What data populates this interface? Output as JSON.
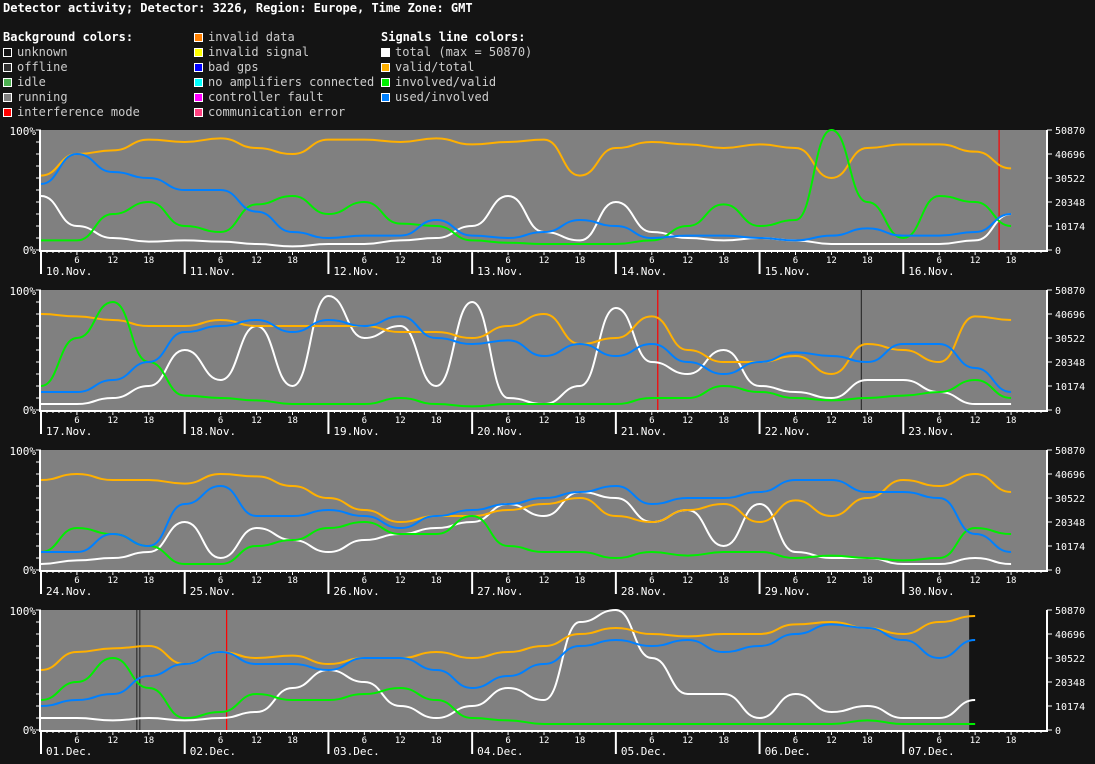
{
  "title": "Detector activity; Detector: 3226, Region: Europe, Time Zone: GMT",
  "legend": {
    "background_heading": "Background colors:",
    "background": [
      {
        "label": "unknown",
        "color": "#141414"
      },
      {
        "label": "offline",
        "color": "#303030"
      },
      {
        "label": "idle",
        "color": "#4caf50"
      },
      {
        "label": "running",
        "color": "#808080"
      },
      {
        "label": "interference mode",
        "color": "#ff0000"
      }
    ],
    "background2": [
      {
        "label": "invalid data",
        "color": "#ff8000"
      },
      {
        "label": "invalid signal",
        "color": "#ffff00"
      },
      {
        "label": "bad gps",
        "color": "#0000ff"
      },
      {
        "label": "no amplifiers connected",
        "color": "#00ffff"
      },
      {
        "label": "controller fault",
        "color": "#ff00ff"
      },
      {
        "label": "communication error",
        "color": "#ff4080"
      }
    ],
    "signals_heading": "Signals line colors:",
    "signals": [
      {
        "label": "total (max = 50870)",
        "color": "#ffffff"
      },
      {
        "label": "valid/total",
        "color": "#ffb000"
      },
      {
        "label": "involved/valid",
        "color": "#00ee00"
      },
      {
        "label": "used/involved",
        "color": "#0080ff"
      }
    ]
  },
  "chart_data": [
    {
      "type": "line",
      "days": [
        "10.Nov.",
        "11.Nov.",
        "12.Nov.",
        "13.Nov.",
        "14.Nov.",
        "15.Nov.",
        "16.Nov."
      ],
      "x_ticks": [
        "6",
        "12",
        "18"
      ],
      "sample_hours": [
        0,
        6,
        12,
        18
      ],
      "y_left_ticks": [
        "100%",
        "0%"
      ],
      "y_right_ticks": [
        "50870",
        "40696",
        "30522",
        "20348",
        "10174",
        "0"
      ],
      "series": [
        {
          "name": "total (max = 50870)",
          "color": "#ffffff",
          "values": [
            45,
            20,
            10,
            7,
            8,
            7,
            5,
            3,
            5,
            5,
            8,
            10,
            20,
            45,
            15,
            8,
            40,
            15,
            10,
            8,
            10,
            8,
            5,
            5,
            5,
            5,
            8,
            30
          ]
        },
        {
          "name": "valid/total",
          "color": "#ffb000",
          "values": [
            62,
            80,
            83,
            92,
            90,
            93,
            85,
            80,
            92,
            92,
            90,
            93,
            88,
            90,
            92,
            62,
            85,
            90,
            88,
            85,
            88,
            85,
            60,
            85,
            88,
            88,
            82,
            68
          ]
        },
        {
          "name": "involved/valid",
          "color": "#00ee00",
          "values": [
            8,
            8,
            30,
            40,
            20,
            15,
            38,
            45,
            30,
            40,
            22,
            20,
            8,
            6,
            5,
            5,
            5,
            8,
            20,
            38,
            20,
            25,
            100,
            40,
            10,
            45,
            40,
            20
          ]
        },
        {
          "name": "used/involved",
          "color": "#0080ff",
          "values": [
            55,
            80,
            65,
            60,
            50,
            50,
            32,
            15,
            10,
            12,
            12,
            25,
            12,
            10,
            15,
            25,
            20,
            10,
            12,
            12,
            10,
            8,
            12,
            18,
            12,
            12,
            15,
            30
          ]
        }
      ],
      "events": [
        {
          "state": "interference mode",
          "day": 6,
          "hour": 16
        }
      ],
      "running_until": null
    },
    {
      "type": "line",
      "days": [
        "17.Nov.",
        "18.Nov.",
        "19.Nov.",
        "20.Nov.",
        "21.Nov.",
        "22.Nov.",
        "23.Nov."
      ],
      "x_ticks": [
        "6",
        "12",
        "18"
      ],
      "sample_hours": [
        0,
        6,
        12,
        18
      ],
      "y_left_ticks": [
        "100%",
        "0%"
      ],
      "y_right_ticks": [
        "50870",
        "40696",
        "30522",
        "20348",
        "10174",
        "0"
      ],
      "series": [
        {
          "name": "total (max = 50870)",
          "color": "#ffffff",
          "values": [
            5,
            5,
            10,
            20,
            50,
            25,
            70,
            20,
            95,
            60,
            70,
            20,
            90,
            10,
            5,
            20,
            85,
            40,
            30,
            50,
            20,
            15,
            10,
            25,
            25,
            15,
            5,
            5
          ]
        },
        {
          "name": "valid/total",
          "color": "#ffb000",
          "values": [
            80,
            78,
            75,
            70,
            70,
            75,
            70,
            70,
            70,
            70,
            65,
            65,
            60,
            70,
            80,
            55,
            60,
            78,
            50,
            40,
            40,
            45,
            30,
            55,
            50,
            40,
            78,
            75
          ]
        },
        {
          "name": "involved/valid",
          "color": "#00ee00",
          "values": [
            20,
            60,
            90,
            40,
            12,
            10,
            8,
            5,
            5,
            5,
            10,
            5,
            3,
            5,
            5,
            5,
            5,
            10,
            10,
            20,
            15,
            10,
            8,
            10,
            12,
            15,
            25,
            10
          ]
        },
        {
          "name": "used/involved",
          "color": "#0080ff",
          "values": [
            15,
            15,
            25,
            40,
            65,
            70,
            75,
            65,
            75,
            70,
            78,
            60,
            55,
            58,
            45,
            55,
            45,
            55,
            40,
            30,
            40,
            48,
            45,
            40,
            55,
            55,
            35,
            15
          ]
        }
      ],
      "events": [
        {
          "state": "interference mode",
          "day": 4,
          "hour": 7
        },
        {
          "state": "offline",
          "day": 5,
          "hour": 17
        }
      ],
      "running_until": null
    },
    {
      "type": "line",
      "days": [
        "24.Nov.",
        "25.Nov.",
        "26.Nov.",
        "27.Nov.",
        "28.Nov.",
        "29.Nov.",
        "30.Nov."
      ],
      "x_ticks": [
        "6",
        "12",
        "18"
      ],
      "sample_hours": [
        0,
        6,
        12,
        18
      ],
      "y_left_ticks": [
        "100%",
        "0%"
      ],
      "y_right_ticks": [
        "50870",
        "40696",
        "30522",
        "20348",
        "10174",
        "0"
      ],
      "series": [
        {
          "name": "total (max = 50870)",
          "color": "#ffffff",
          "values": [
            5,
            8,
            10,
            15,
            40,
            10,
            35,
            25,
            15,
            25,
            30,
            35,
            40,
            55,
            45,
            65,
            60,
            40,
            50,
            20,
            55,
            15,
            10,
            10,
            5,
            5,
            10,
            5
          ]
        },
        {
          "name": "valid/total",
          "color": "#ffb000",
          "values": [
            75,
            80,
            75,
            75,
            72,
            80,
            78,
            70,
            60,
            50,
            40,
            45,
            45,
            50,
            55,
            60,
            45,
            40,
            50,
            55,
            40,
            58,
            45,
            60,
            75,
            70,
            80,
            65
          ]
        },
        {
          "name": "involved/valid",
          "color": "#00ee00",
          "values": [
            15,
            35,
            30,
            20,
            5,
            5,
            20,
            25,
            35,
            40,
            30,
            30,
            45,
            20,
            15,
            15,
            10,
            15,
            12,
            15,
            15,
            10,
            12,
            10,
            8,
            10,
            35,
            30
          ]
        },
        {
          "name": "used/involved",
          "color": "#0080ff",
          "values": [
            15,
            15,
            30,
            20,
            55,
            70,
            45,
            45,
            50,
            45,
            35,
            45,
            50,
            55,
            60,
            65,
            70,
            55,
            60,
            60,
            65,
            75,
            75,
            65,
            65,
            60,
            30,
            15
          ]
        }
      ],
      "events": [],
      "running_until": null
    },
    {
      "type": "line",
      "days": [
        "01.Dec.",
        "02.Dec.",
        "03.Dec.",
        "04.Dec.",
        "05.Dec.",
        "06.Dec.",
        "07.Dec."
      ],
      "x_ticks": [
        "6",
        "12",
        "18"
      ],
      "sample_hours": [
        0,
        6,
        12,
        18
      ],
      "y_left_ticks": [
        "100%",
        "0%"
      ],
      "y_right_ticks": [
        "50870",
        "40696",
        "30522",
        "20348",
        "10174",
        "0"
      ],
      "series": [
        {
          "name": "total (max = 50870)",
          "color": "#ffffff",
          "values": [
            10,
            10,
            8,
            10,
            8,
            10,
            15,
            35,
            50,
            40,
            20,
            10,
            20,
            35,
            25,
            90,
            100,
            60,
            30,
            30,
            10,
            30,
            15,
            20,
            10,
            10,
            25
          ]
        },
        {
          "name": "valid/total",
          "color": "#ffb000",
          "values": [
            50,
            65,
            68,
            70,
            55,
            65,
            60,
            62,
            55,
            60,
            60,
            65,
            60,
            65,
            70,
            80,
            85,
            80,
            78,
            80,
            80,
            88,
            90,
            85,
            80,
            90,
            95
          ]
        },
        {
          "name": "involved/valid",
          "color": "#00ee00",
          "values": [
            25,
            40,
            60,
            35,
            10,
            15,
            30,
            25,
            25,
            30,
            35,
            25,
            10,
            8,
            5,
            5,
            5,
            5,
            5,
            5,
            5,
            5,
            5,
            8,
            5,
            5,
            5
          ]
        },
        {
          "name": "used/involved",
          "color": "#0080ff",
          "values": [
            20,
            25,
            30,
            45,
            55,
            65,
            55,
            55,
            50,
            60,
            60,
            50,
            35,
            45,
            55,
            70,
            75,
            70,
            75,
            65,
            70,
            80,
            88,
            85,
            75,
            60,
            75
          ]
        }
      ],
      "events": [
        {
          "state": "offline",
          "day": 0,
          "hour": 16
        },
        {
          "state": "offline",
          "day": 0,
          "hour": 16.5
        },
        {
          "state": "interference mode",
          "day": 1,
          "hour": 7
        }
      ],
      "running_until": {
        "day": 6,
        "hour": 11
      }
    }
  ]
}
